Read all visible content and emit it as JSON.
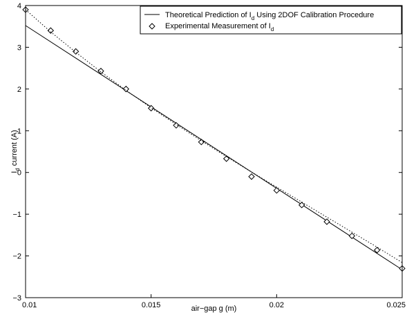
{
  "chart_data": {
    "type": "line",
    "xlabel": "air−gap g (m)",
    "ylabel": {
      "base": "I",
      "sub": "d",
      "rest": " current (A)"
    },
    "xlim": [
      0.01,
      0.025
    ],
    "ylim": [
      -3,
      4
    ],
    "x_ticks": [
      0.01,
      0.015,
      0.02,
      0.025
    ],
    "x_tick_labels": [
      "0.01",
      "0.015",
      "0.02",
      "0.025"
    ],
    "y_ticks": [
      -3,
      -2,
      -1,
      0,
      1,
      2,
      3,
      4
    ],
    "y_tick_labels": [
      "−3",
      "−2",
      "−1",
      "0",
      "1",
      "2",
      "3",
      "4"
    ],
    "grid": false,
    "legend_position": "top-right",
    "series": [
      {
        "name": {
          "base": "Theoretical Prediction of I",
          "sub": "d",
          "rest": " Using 2DOF Calibration Procedure"
        },
        "style": "solid line",
        "color": "#000000",
        "x": [
          0.01,
          0.025
        ],
        "y": [
          3.52,
          -2.33
        ]
      },
      {
        "name": {
          "base": "Experimental Measurement of I",
          "sub": "d",
          "rest": ""
        },
        "style": "diamond markers",
        "color": "#000000",
        "x": [
          0.01,
          0.011,
          0.012,
          0.013,
          0.014,
          0.015,
          0.016,
          0.017,
          0.018,
          0.019,
          0.02,
          0.021,
          0.022,
          0.023,
          0.024,
          0.025
        ],
        "y": [
          3.9,
          3.4,
          2.9,
          2.43,
          2.0,
          1.54,
          1.13,
          0.73,
          0.33,
          -0.1,
          -0.43,
          -0.78,
          -1.18,
          -1.52,
          -1.86,
          -2.3
        ]
      },
      {
        "name": "",
        "style": "dotted fit line",
        "color": "#000000",
        "x": [
          0.01,
          0.011,
          0.012,
          0.013,
          0.014,
          0.015,
          0.016,
          0.017,
          0.018,
          0.019,
          0.02,
          0.021,
          0.022,
          0.023,
          0.024,
          0.025
        ],
        "y": [
          3.9,
          3.37,
          2.88,
          2.41,
          1.97,
          1.55,
          1.15,
          0.76,
          0.38,
          0.01,
          -0.35,
          -0.71,
          -1.07,
          -1.43,
          -1.79,
          -2.16
        ]
      }
    ]
  }
}
